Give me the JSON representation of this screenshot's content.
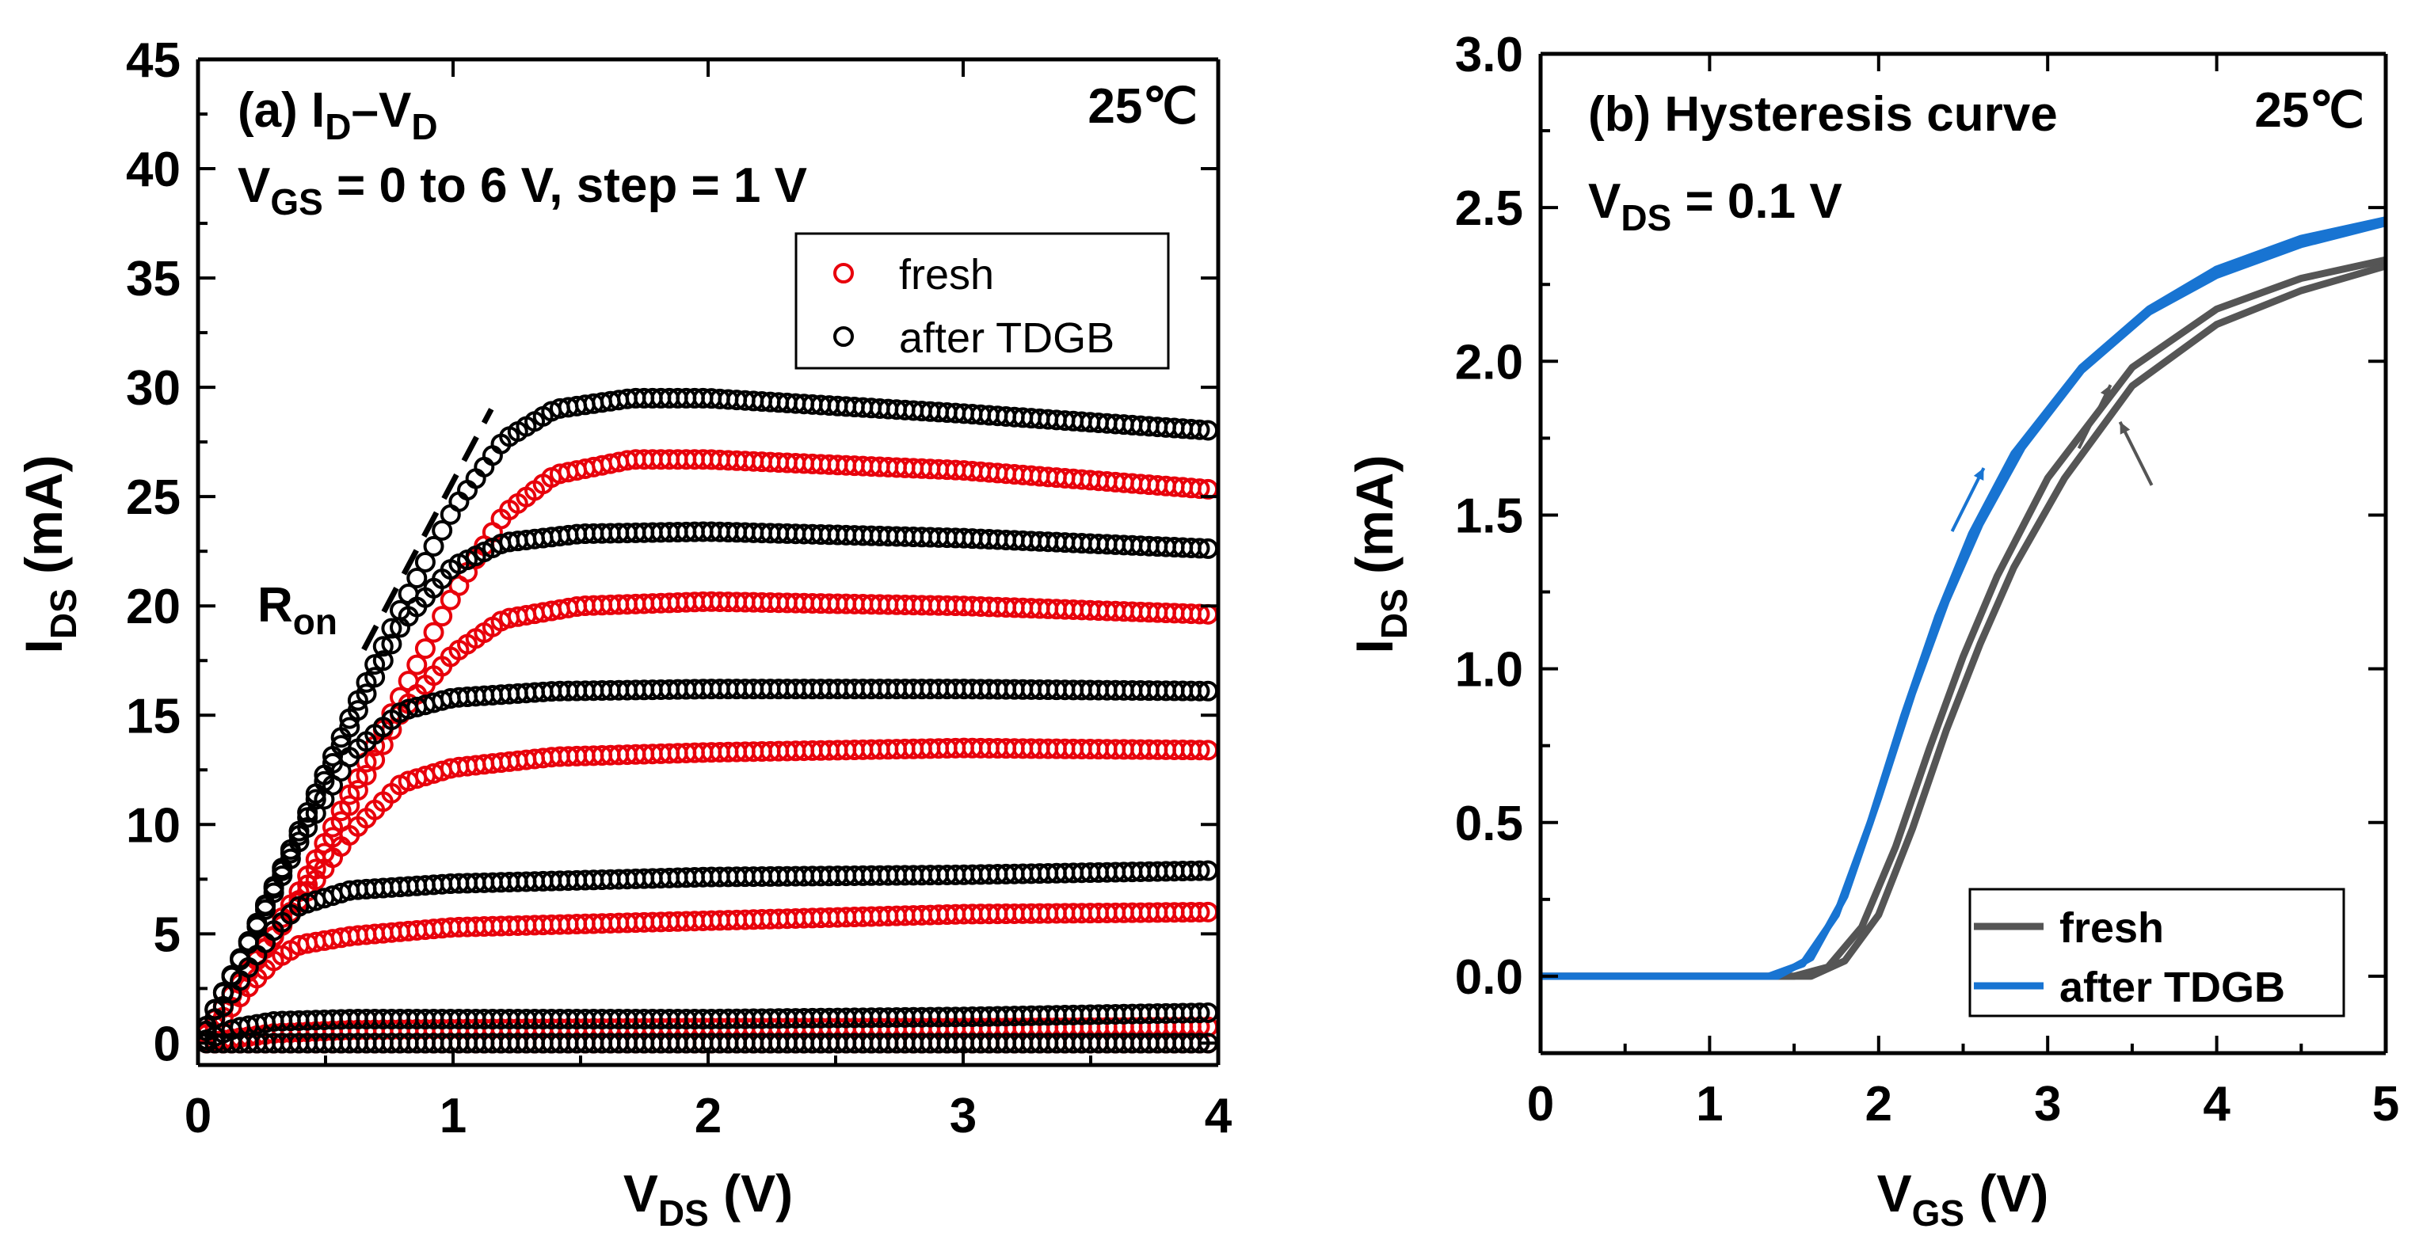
{
  "chart_data": [
    {
      "panel": "a",
      "type": "scatter",
      "title": "(a) I",
      "title_sub1": "D",
      "title_mid": "–V",
      "title_sub2": "D",
      "condition_main": "V",
      "condition_sub": "GS",
      "condition_rest": " = 0 to 6 V, step = 1 V",
      "temperature": "25℃",
      "annotation_main": "R",
      "annotation_sub": "on",
      "xlabel_main": "V",
      "xlabel_sub": "DS",
      "xlabel_unit": " (V)",
      "ylabel_main": "I",
      "ylabel_sub": "DS",
      "ylabel_unit": " (mA)",
      "xlim": [
        0,
        4
      ],
      "ylim": [
        -1,
        45
      ],
      "xticks": [
        "0",
        "1",
        "2",
        "3",
        "4"
      ],
      "yticks": [
        "0",
        "5",
        "10",
        "15",
        "20",
        "25",
        "30",
        "35",
        "40",
        "45"
      ],
      "legend": [
        {
          "label": "fresh",
          "color": "#e8000b"
        },
        {
          "label": "after TDGB",
          "color": "#000000"
        }
      ],
      "series": [
        {
          "name": "fresh",
          "color": "#e8000b",
          "curves": [
            {
              "vgs": 1,
              "values": [
                [
                  0,
                  0
                ],
                [
                  4,
                  0
                ]
              ]
            },
            {
              "vgs": 2,
              "values": [
                [
                  0,
                  0
                ],
                [
                  0.3,
                  0.45
                ],
                [
                  0.6,
                  0.6
                ],
                [
                  1,
                  0.65
                ],
                [
                  2,
                  0.7
                ],
                [
                  3,
                  0.7
                ],
                [
                  4,
                  0.75
                ]
              ]
            },
            {
              "vgs": 3,
              "values": [
                [
                  0,
                  0
                ],
                [
                  0.1,
                  1.2
                ],
                [
                  0.2,
                  2.6
                ],
                [
                  0.3,
                  3.8
                ],
                [
                  0.4,
                  4.5
                ],
                [
                  0.6,
                  4.9
                ],
                [
                  1,
                  5.3
                ],
                [
                  2,
                  5.6
                ],
                [
                  3,
                  5.9
                ],
                [
                  4,
                  6.0
                ]
              ]
            },
            {
              "vgs": 4,
              "values": [
                [
                  0,
                  0
                ],
                [
                  0.2,
                  3.3
                ],
                [
                  0.4,
                  6.5
                ],
                [
                  0.6,
                  9.6
                ],
                [
                  0.8,
                  11.9
                ],
                [
                  1,
                  12.6
                ],
                [
                  1.4,
                  13.1
                ],
                [
                  2,
                  13.3
                ],
                [
                  3,
                  13.5
                ],
                [
                  4,
                  13.4
                ]
              ]
            },
            {
              "vgs": 5,
              "values": [
                [
                  0,
                  0
                ],
                [
                  0.2,
                  3.3
                ],
                [
                  0.4,
                  6.6
                ],
                [
                  0.6,
                  11.0
                ],
                [
                  0.8,
                  15.2
                ],
                [
                  1.0,
                  17.8
                ],
                [
                  1.2,
                  19.4
                ],
                [
                  1.5,
                  20.0
                ],
                [
                  2,
                  20.2
                ],
                [
                  3,
                  20.0
                ],
                [
                  4,
                  19.6
                ]
              ]
            },
            {
              "vgs": 6,
              "values": [
                [
                  0,
                  0
                ],
                [
                  0.2,
                  3.4
                ],
                [
                  0.4,
                  7.0
                ],
                [
                  0.6,
                  11.5
                ],
                [
                  0.8,
                  16.0
                ],
                [
                  1.0,
                  20.5
                ],
                [
                  1.2,
                  24.2
                ],
                [
                  1.4,
                  26.0
                ],
                [
                  1.7,
                  26.7
                ],
                [
                  2,
                  26.7
                ],
                [
                  3,
                  26.2
                ],
                [
                  4,
                  25.3
                ]
              ]
            }
          ]
        },
        {
          "name": "after TDGB",
          "color": "#000000",
          "curves": [
            {
              "vgs": 1,
              "values": [
                [
                  0,
                  0
                ],
                [
                  4,
                  0
                ]
              ]
            },
            {
              "vgs": 2,
              "values": [
                [
                  0,
                  0
                ],
                [
                  0.15,
                  0.7
                ],
                [
                  0.3,
                  1.0
                ],
                [
                  0.6,
                  1.1
                ],
                [
                  1,
                  1.1
                ],
                [
                  2,
                  1.1
                ],
                [
                  3,
                  1.2
                ],
                [
                  4,
                  1.4
                ]
              ]
            },
            {
              "vgs": 3,
              "values": [
                [
                  0,
                  0
                ],
                [
                  0.1,
                  1.7
                ],
                [
                  0.2,
                  3.5
                ],
                [
                  0.3,
                  5.2
                ],
                [
                  0.4,
                  6.3
                ],
                [
                  0.6,
                  7.0
                ],
                [
                  1,
                  7.3
                ],
                [
                  2,
                  7.6
                ],
                [
                  3,
                  7.7
                ],
                [
                  4,
                  7.9
                ]
              ]
            },
            {
              "vgs": 4,
              "values": [
                [
                  0,
                  0
                ],
                [
                  0.2,
                  4.6
                ],
                [
                  0.4,
                  9.3
                ],
                [
                  0.6,
                  13.2
                ],
                [
                  0.8,
                  15.2
                ],
                [
                  1.0,
                  15.8
                ],
                [
                  1.4,
                  16.1
                ],
                [
                  2,
                  16.2
                ],
                [
                  3,
                  16.2
                ],
                [
                  4,
                  16.1
                ]
              ]
            },
            {
              "vgs": 5,
              "values": [
                [
                  0,
                  0
                ],
                [
                  0.2,
                  4.7
                ],
                [
                  0.4,
                  9.6
                ],
                [
                  0.6,
                  14.6
                ],
                [
                  0.8,
                  19.2
                ],
                [
                  1.0,
                  21.8
                ],
                [
                  1.2,
                  22.9
                ],
                [
                  1.5,
                  23.3
                ],
                [
                  2,
                  23.4
                ],
                [
                  3,
                  23.1
                ],
                [
                  4,
                  22.6
                ]
              ]
            },
            {
              "vgs": 6,
              "values": [
                [
                  0,
                  0
                ],
                [
                  0.2,
                  4.7
                ],
                [
                  0.4,
                  9.8
                ],
                [
                  0.6,
                  15.0
                ],
                [
                  0.8,
                  20.0
                ],
                [
                  1.0,
                  24.4
                ],
                [
                  1.2,
                  27.6
                ],
                [
                  1.4,
                  29.0
                ],
                [
                  1.7,
                  29.5
                ],
                [
                  2,
                  29.5
                ],
                [
                  3,
                  28.8
                ],
                [
                  4,
                  28.0
                ]
              ]
            }
          ]
        }
      ],
      "ron_line": [
        [
          0.65,
          18
        ],
        [
          1.15,
          29
        ]
      ]
    },
    {
      "panel": "b",
      "type": "line",
      "title": "(b) Hysteresis curve",
      "temperature": "25℃",
      "condition_main": "V",
      "condition_sub": "DS",
      "condition_rest": " = 0.1 V",
      "xlabel_main": "V",
      "xlabel_sub": "GS",
      "xlabel_unit": " (V)",
      "ylabel_main": "I",
      "ylabel_sub": "DS",
      "ylabel_unit": " (mA)",
      "xlim": [
        0,
        5
      ],
      "ylim": [
        -0.25,
        3.0
      ],
      "xticks": [
        "0",
        "1",
        "2",
        "3",
        "4",
        "5"
      ],
      "yticks": [
        "0.0",
        "0.5",
        "1.0",
        "1.5",
        "2.0",
        "2.5",
        "3.0"
      ],
      "legend": [
        {
          "label": "fresh",
          "color": "#555555"
        },
        {
          "label": "after TDGB",
          "color": "#1874d2"
        }
      ],
      "series": [
        {
          "name": "fresh",
          "color": "#555555",
          "curves": [
            {
              "sweep": "up",
              "values": [
                [
                  0,
                  0
                ],
                [
                  1.5,
                  0
                ],
                [
                  1.7,
                  0.03
                ],
                [
                  1.9,
                  0.16
                ],
                [
                  2.1,
                  0.42
                ],
                [
                  2.3,
                  0.74
                ],
                [
                  2.5,
                  1.04
                ],
                [
                  2.7,
                  1.3
                ],
                [
                  3.0,
                  1.62
                ],
                [
                  3.5,
                  1.98
                ],
                [
                  4.0,
                  2.17
                ],
                [
                  4.5,
                  2.27
                ],
                [
                  5,
                  2.33
                ]
              ]
            },
            {
              "sweep": "down",
              "values": [
                [
                  0,
                  0
                ],
                [
                  1.6,
                  0
                ],
                [
                  1.8,
                  0.05
                ],
                [
                  2.0,
                  0.2
                ],
                [
                  2.2,
                  0.48
                ],
                [
                  2.4,
                  0.8
                ],
                [
                  2.6,
                  1.08
                ],
                [
                  2.8,
                  1.33
                ],
                [
                  3.1,
                  1.62
                ],
                [
                  3.5,
                  1.92
                ],
                [
                  4.0,
                  2.12
                ],
                [
                  4.5,
                  2.23
                ],
                [
                  5,
                  2.31
                ]
              ]
            }
          ]
        },
        {
          "name": "after TDGB",
          "color": "#1874d2",
          "curves": [
            {
              "sweep": "up",
              "values": [
                [
                  0,
                  0
                ],
                [
                  1.35,
                  0
                ],
                [
                  1.55,
                  0.04
                ],
                [
                  1.75,
                  0.2
                ],
                [
                  1.95,
                  0.5
                ],
                [
                  2.15,
                  0.85
                ],
                [
                  2.35,
                  1.17
                ],
                [
                  2.55,
                  1.44
                ],
                [
                  2.8,
                  1.7
                ],
                [
                  3.2,
                  1.98
                ],
                [
                  3.6,
                  2.17
                ],
                [
                  4.0,
                  2.3
                ],
                [
                  4.5,
                  2.4
                ],
                [
                  5,
                  2.46
                ]
              ]
            },
            {
              "sweep": "down",
              "values": [
                [
                  0,
                  0
                ],
                [
                  1.4,
                  0
                ],
                [
                  1.6,
                  0.06
                ],
                [
                  1.8,
                  0.26
                ],
                [
                  2.0,
                  0.58
                ],
                [
                  2.2,
                  0.92
                ],
                [
                  2.4,
                  1.22
                ],
                [
                  2.6,
                  1.47
                ],
                [
                  2.85,
                  1.72
                ],
                [
                  3.2,
                  1.97
                ],
                [
                  3.6,
                  2.16
                ],
                [
                  4.0,
                  2.28
                ],
                [
                  4.5,
                  2.38
                ],
                [
                  5,
                  2.45
                ]
              ]
            }
          ]
        }
      ],
      "arrows": [
        {
          "series": "after TDGB",
          "direction": "up",
          "at": [
            2.65,
            1.55
          ]
        },
        {
          "series": "fresh",
          "direction": "up",
          "at": [
            3.4,
            1.82
          ]
        },
        {
          "series": "fresh",
          "direction": "down",
          "at": [
            3.4,
            1.7
          ]
        }
      ]
    }
  ]
}
